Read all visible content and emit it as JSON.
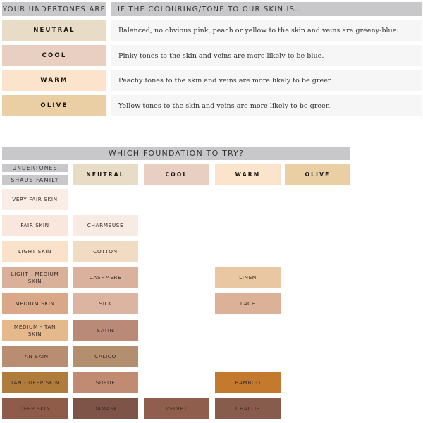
{
  "undertones_table": {
    "header_left": "YOUR UNDERTONES ARE",
    "header_right": "IF THE COLOURING/TONE TO OUR SKIN IS..",
    "rows": [
      {
        "label": "NEUTRAL",
        "color": "#e8dcc6",
        "description": "Balanced, no obvious pink, peach or yellow to the skin and veins are greeny-blue."
      },
      {
        "label": "COOL",
        "color": "#e8cfc2",
        "description": "Pinky tones to the skin and veins are more likely to be blue."
      },
      {
        "label": "WARM",
        "color": "#fbe3cc",
        "description": "Peachy tones to the skin and veins are more likely to be green."
      },
      {
        "label": "OLIVE",
        "color": "#e9cfa3",
        "description": "Yellow tones to the skin and veins are more likely to be green."
      }
    ]
  },
  "foundation_table": {
    "title": "WHICH FOUNDATION TO TRY?",
    "undertones_label": "UNDERTONES",
    "shade_family_label": "SHADE FAMILY",
    "columns": [
      {
        "label": "NEUTRAL",
        "color": "#e8dcc6"
      },
      {
        "label": "COOL",
        "color": "#e8cfc2"
      },
      {
        "label": "WARM",
        "color": "#fbe3cc"
      },
      {
        "label": "OLIVE",
        "color": "#e9cfa3"
      }
    ],
    "rows": [
      {
        "family": "VERY FAIR SKIN",
        "color": "#f9ede6",
        "shades": [
          null,
          null,
          null,
          null
        ]
      },
      {
        "family": "FAIR SKIN",
        "color": "#f9e6dc",
        "shades": [
          {
            "name": "CHARMEUSE",
            "color": "#f7ebe3"
          },
          null,
          null,
          null
        ]
      },
      {
        "family": "LIGHT SKIN",
        "color": "#fae1c9",
        "shades": [
          {
            "name": "COTTON",
            "color": "#f1dcc3"
          },
          null,
          null,
          null
        ]
      },
      {
        "family": "LIGHT - MEDIUM SKIN",
        "color": "#d9b09a",
        "shades": [
          {
            "name": "CASHMERE",
            "color": "#d9b19d"
          },
          null,
          {
            "name": "LINEN",
            "color": "#e9c7a2"
          },
          null
        ]
      },
      {
        "family": "MEDIUM SKIN",
        "color": "#d8a888",
        "shades": [
          {
            "name": "SILK",
            "color": "#dbb5a2"
          },
          null,
          {
            "name": "LACE",
            "color": "#dbb297"
          },
          null
        ]
      },
      {
        "family": "MEDIUM - TAN SKIN",
        "color": "#e5b98c",
        "shades": [
          {
            "name": "SATIN",
            "color": "#b98a78"
          },
          null,
          null,
          null
        ]
      },
      {
        "family": "TAN SKIN",
        "color": "#b98d72",
        "shades": [
          {
            "name": "CALICO",
            "color": "#b38f70"
          },
          null,
          null,
          null
        ]
      },
      {
        "family": "TAN - DEEP SKIN",
        "color": "#b07c3b",
        "shades": [
          {
            "name": "SUEDE",
            "color": "#c08a73"
          },
          null,
          {
            "name": "BAMBOO",
            "color": "#c47a2e"
          },
          null
        ]
      },
      {
        "family": "DEEP SKIN",
        "color": "#8f5c4a",
        "shades": [
          {
            "name": "DAMASK",
            "color": "#7f5448"
          },
          {
            "name": "VELVET",
            "color": "#905e4c"
          },
          {
            "name": "CHALLIS",
            "color": "#885c4c"
          },
          null
        ]
      }
    ]
  }
}
